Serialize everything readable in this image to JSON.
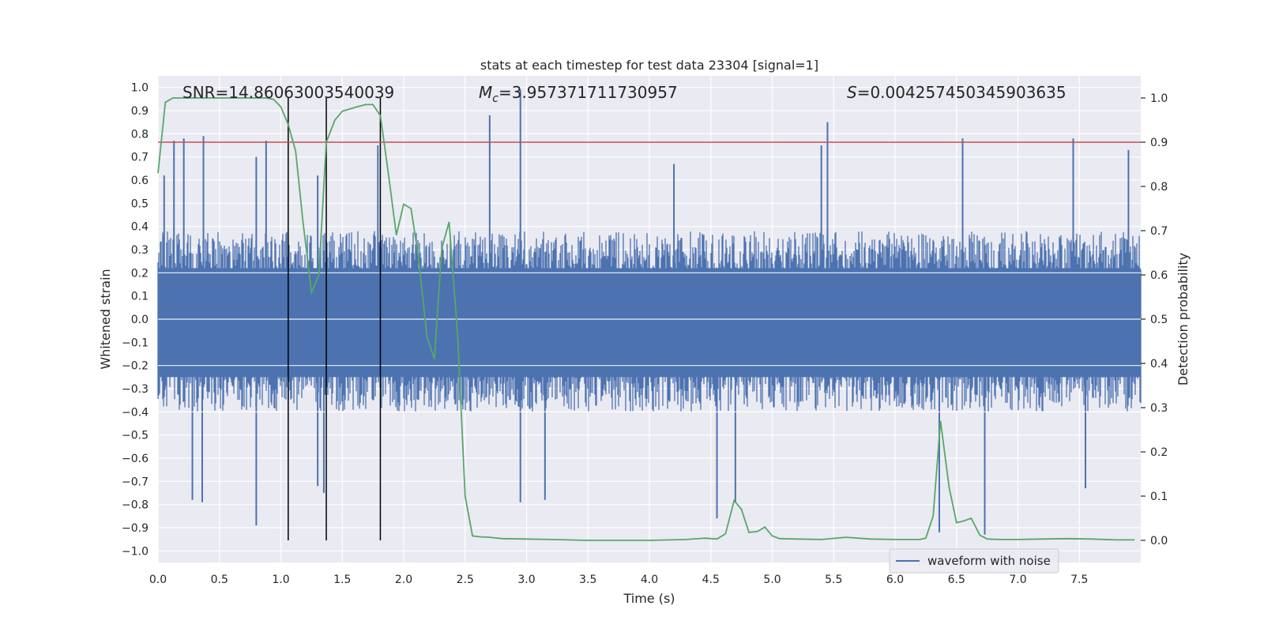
{
  "chart_data": {
    "type": "line",
    "title": "stats at each timestep for test data 23304 [signal=1]",
    "xlabel": "Time (s)",
    "ylabel_left": "Whitened strain",
    "ylabel_right": "Detection probability",
    "xlim": [
      0.0,
      8.0
    ],
    "ylim_left": [
      -1.05,
      1.05
    ],
    "ylim_right": [
      -0.05,
      1.05
    ],
    "x_ticks": [
      "0.0",
      "0.5",
      "1.0",
      "1.5",
      "2.0",
      "2.5",
      "3.0",
      "3.5",
      "4.0",
      "4.5",
      "5.0",
      "5.5",
      "6.0",
      "6.5",
      "7.0",
      "7.5"
    ],
    "y_ticks_left": [
      "1.0",
      "0.9",
      "0.8",
      "0.7",
      "0.6",
      "0.5",
      "0.4",
      "0.3",
      "0.2",
      "0.1",
      "0.0",
      "−0.1",
      "−0.2",
      "−0.3",
      "−0.4",
      "−0.5",
      "−0.6",
      "−0.7",
      "−0.8",
      "−0.9",
      "−1.0"
    ],
    "y_ticks_right": [
      "1.0",
      "0.9",
      "0.8",
      "0.7",
      "0.6",
      "0.5",
      "0.4",
      "0.3",
      "0.2",
      "0.1",
      "0.0"
    ],
    "annotations": {
      "snr": "SNR=14.86063003540039",
      "mc_symbol": "M",
      "mc_sub": "c",
      "mc_value": "=3.957371711730957",
      "s_symbol": "S",
      "s_value": "=0.004257450345903635"
    },
    "threshold_right": 0.9,
    "vertical_lines_x": [
      1.06,
      1.37,
      1.81
    ],
    "legend": {
      "label": "waveform with noise",
      "placement": "lower-right"
    },
    "grid": true,
    "colors": {
      "axes_bg": "#eaeaf2",
      "grid": "#ffffff",
      "waveform": "#4c72b0",
      "probability": "#55a868",
      "threshold": "#c44e52",
      "vlines": "#000000"
    },
    "series": [
      {
        "name": "waveform with noise",
        "axis": "left",
        "envelope_positive_baseline": 0.38,
        "envelope_negative_baseline": -0.4,
        "spikes": [
          {
            "x": 0.05,
            "y": 0.62
          },
          {
            "x": 0.13,
            "y": 0.77
          },
          {
            "x": 0.21,
            "y": 0.78
          },
          {
            "x": 0.37,
            "y": 0.79
          },
          {
            "x": 0.8,
            "y": 0.7
          },
          {
            "x": 0.88,
            "y": 0.77
          },
          {
            "x": 1.3,
            "y": 0.62
          },
          {
            "x": 1.79,
            "y": 0.75
          },
          {
            "x": 2.7,
            "y": 0.88
          },
          {
            "x": 2.95,
            "y": 0.99
          },
          {
            "x": 4.2,
            "y": 0.67
          },
          {
            "x": 5.4,
            "y": 0.75
          },
          {
            "x": 5.45,
            "y": 0.85
          },
          {
            "x": 6.55,
            "y": 0.78
          },
          {
            "x": 7.45,
            "y": 0.78
          },
          {
            "x": 7.9,
            "y": 0.73
          },
          {
            "x": 0.28,
            "y": -0.78
          },
          {
            "x": 0.36,
            "y": -0.79
          },
          {
            "x": 0.8,
            "y": -0.89
          },
          {
            "x": 1.3,
            "y": -0.72
          },
          {
            "x": 1.35,
            "y": -0.75
          },
          {
            "x": 2.95,
            "y": -0.79
          },
          {
            "x": 3.15,
            "y": -0.78
          },
          {
            "x": 4.55,
            "y": -0.86
          },
          {
            "x": 4.7,
            "y": -0.79
          },
          {
            "x": 6.36,
            "y": -0.92
          },
          {
            "x": 6.73,
            "y": -0.93
          },
          {
            "x": 7.55,
            "y": -0.73
          }
        ]
      },
      {
        "name": "",
        "axis": "right",
        "x": [
          0.0,
          0.06,
          0.12,
          0.2,
          0.3,
          0.4,
          0.5,
          0.6,
          0.7,
          0.8,
          0.88,
          0.94,
          1.0,
          1.06,
          1.12,
          1.18,
          1.25,
          1.31,
          1.37,
          1.44,
          1.5,
          1.56,
          1.62,
          1.69,
          1.75,
          1.81,
          1.88,
          1.94,
          2.0,
          2.06,
          2.12,
          2.19,
          2.25,
          2.31,
          2.37,
          2.44,
          2.5,
          2.56,
          2.62,
          2.7,
          2.8,
          3.0,
          3.2,
          3.5,
          4.0,
          4.3,
          4.45,
          4.55,
          4.62,
          4.69,
          4.75,
          4.81,
          4.88,
          4.94,
          5.0,
          5.06,
          5.2,
          5.4,
          5.6,
          5.8,
          6.0,
          6.2,
          6.25,
          6.31,
          6.37,
          6.44,
          6.5,
          6.56,
          6.62,
          6.69,
          6.75,
          6.85,
          7.0,
          7.2,
          7.4,
          7.6,
          7.8,
          7.95
        ],
        "values": [
          0.83,
          0.99,
          1.0,
          1.0,
          1.0,
          1.0,
          1.0,
          1.0,
          1.0,
          1.0,
          1.0,
          0.997,
          0.98,
          0.94,
          0.88,
          0.72,
          0.56,
          0.6,
          0.9,
          0.95,
          0.97,
          0.975,
          0.98,
          0.985,
          0.985,
          0.96,
          0.82,
          0.69,
          0.76,
          0.75,
          0.64,
          0.46,
          0.41,
          0.66,
          0.72,
          0.46,
          0.1,
          0.01,
          0.008,
          0.007,
          0.004,
          0.003,
          0.002,
          0.0,
          0.0,
          0.002,
          0.005,
          0.003,
          0.015,
          0.09,
          0.07,
          0.018,
          0.02,
          0.03,
          0.01,
          0.004,
          0.003,
          0.002,
          0.007,
          0.003,
          0.002,
          0.002,
          0.005,
          0.055,
          0.27,
          0.12,
          0.04,
          0.044,
          0.05,
          0.012,
          0.003,
          0.002,
          0.002,
          0.003,
          0.004,
          0.003,
          0.001,
          0.001
        ]
      }
    ]
  }
}
